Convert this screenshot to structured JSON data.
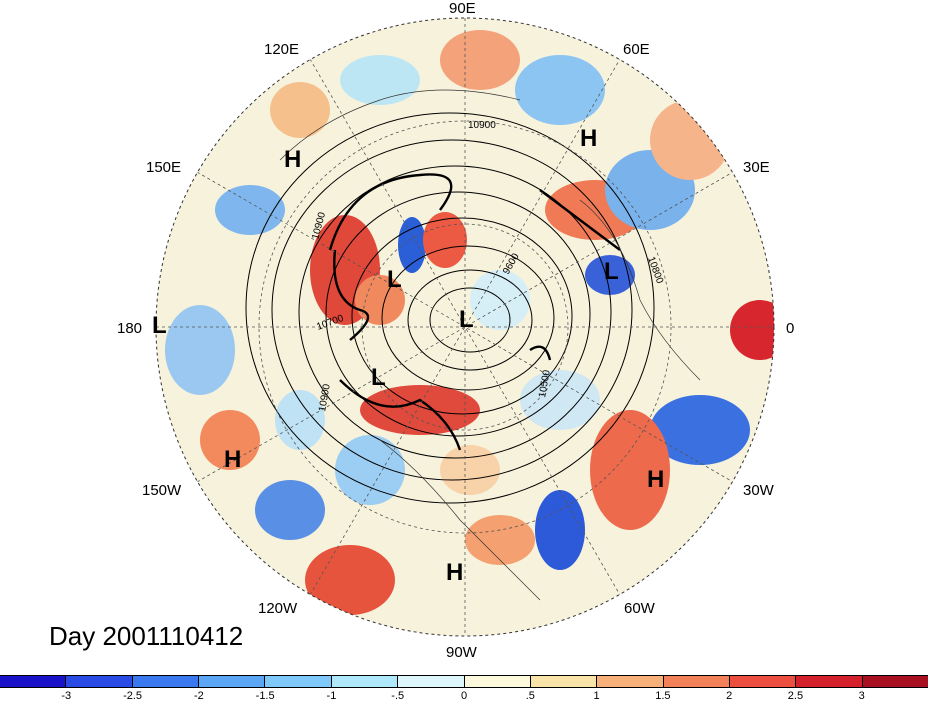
{
  "map": {
    "day_label": "Day 2001110412",
    "longitude_labels": {
      "lon_90e": "90E",
      "lon_120e": "120E",
      "lon_60e": "60E",
      "lon_150e": "150E",
      "lon_30e": "30E",
      "lon_180": "180",
      "lon_0": "0",
      "lon_150w": "150W",
      "lon_30w": "30W",
      "lon_120w": "120W",
      "lon_60w": "60W",
      "lon_90w": "90W"
    },
    "pressure_centers": {
      "h_north": "H",
      "h_upper_left": "H",
      "l_mid_west": "L",
      "l_center": "L",
      "l_east": "L",
      "l_far_west": "L",
      "l_lower_mid": "L",
      "h_lower_left": "H",
      "h_lower_right": "H",
      "h_bottom": "H"
    },
    "contour_labels": {
      "c10900_top": "10900",
      "c10900_left": "10900",
      "c10700": "10700",
      "c10900_lower": "10900",
      "c10500": "10500",
      "c9600": "9600",
      "c10800": "10800"
    },
    "colors": {
      "ocean_land_base": "#f4f0d8",
      "strong_warm": "#c8202a",
      "strong_cold": "#1a2fc8"
    }
  },
  "colorbar": {
    "colors": [
      "#1a12c8",
      "#2a4ae6",
      "#3a78f0",
      "#5ca6f6",
      "#7ec8fa",
      "#aee8fa",
      "#dcf6fb",
      "#fbf8dc",
      "#f8e4a8",
      "#f7b07a",
      "#f28058",
      "#ec4e40",
      "#d3202a",
      "#a80f20"
    ],
    "labels": [
      "-3",
      "-2.5",
      "-2",
      "-1.5",
      "-1",
      "-.5",
      "0",
      ".5",
      "1",
      "1.5",
      "2",
      "2.5",
      "3"
    ]
  }
}
